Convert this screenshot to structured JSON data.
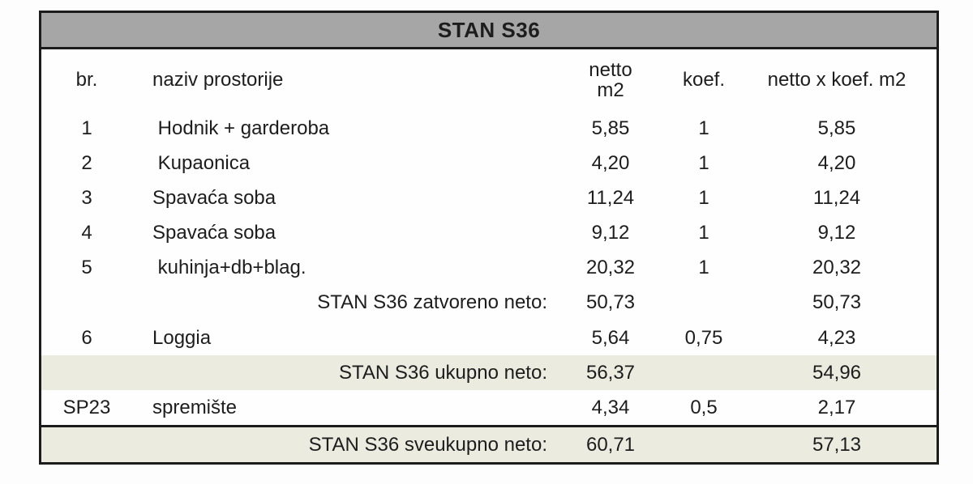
{
  "title": "STAN S36",
  "colors": {
    "title_bg": "#a6a6a6",
    "subtotal_bg": "#ebebe0",
    "border": "#1c1c1c",
    "text": "#1d1d1d"
  },
  "columns": {
    "br": "br.",
    "naziv": "naziv prostorije",
    "netto_line1": "netto",
    "netto_line2": "m2",
    "koef": "koef.",
    "netto_koef": "netto x koef. m2"
  },
  "rows": [
    {
      "br": "1",
      "naziv": " Hodnik + garderoba",
      "netto": "5,85",
      "koef": "1",
      "total": "5,85",
      "type": "normal"
    },
    {
      "br": "2",
      "naziv": " Kupaonica",
      "netto": "4,20",
      "koef": "1",
      "total": "4,20",
      "type": "normal"
    },
    {
      "br": "3",
      "naziv": "Spavaća soba",
      "netto": "11,24",
      "koef": "1",
      "total": "11,24",
      "type": "normal"
    },
    {
      "br": "4",
      "naziv": "Spavaća soba",
      "netto": "9,12",
      "koef": "1",
      "total": "9,12",
      "type": "normal"
    },
    {
      "br": "5",
      "naziv": " kuhinja+db+blag.",
      "netto": "20,32",
      "koef": "1",
      "total": "20,32",
      "type": "normal"
    },
    {
      "br": "",
      "naziv": "STAN S36 zatvoreno neto:",
      "netto": "50,73",
      "koef": "",
      "total": "50,73",
      "type": "subtotal-plain"
    },
    {
      "br": "6",
      "naziv": "Loggia",
      "netto": "5,64",
      "koef": "0,75",
      "total": "4,23",
      "type": "normal"
    },
    {
      "br": "",
      "naziv": "STAN S36 ukupno neto:",
      "netto": "56,37",
      "koef": "",
      "total": "54,96",
      "type": "subtotal-shaded"
    },
    {
      "br": "SP23",
      "naziv": "spremište",
      "netto": "4,34",
      "koef": "0,5",
      "total": "2,17",
      "type": "normal"
    },
    {
      "br": "",
      "naziv": "STAN S36 sveukupno neto:",
      "netto": "60,71",
      "koef": "",
      "total": "57,13",
      "type": "grandtotal"
    }
  ]
}
